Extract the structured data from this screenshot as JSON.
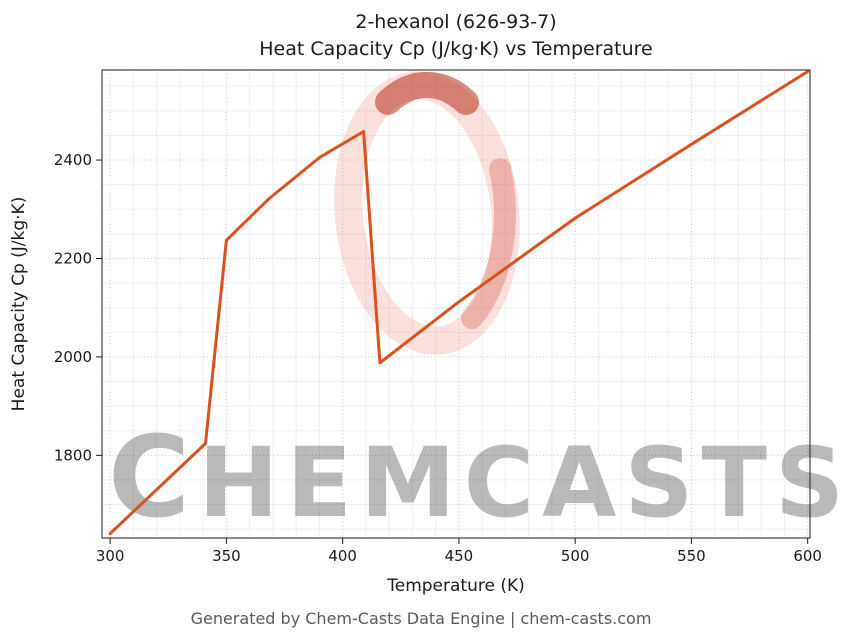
{
  "chart_data": {
    "type": "line",
    "title_line1": "2-hexanol (626-93-7)",
    "title_line2": "Heat Capacity Cp (J/kg·K) vs Temperature",
    "xlabel": "Temperature (K)",
    "ylabel": "Heat Capacity Cp (J/kg·K)",
    "series": [
      {
        "name": "Heat Capacity Cp",
        "x": [
          300,
          341,
          350,
          368,
          390,
          409,
          416,
          450,
          500,
          550,
          600
        ],
        "y": [
          1641,
          1824,
          2237,
          2320,
          2405,
          2458,
          1988,
          2112,
          2282,
          2432,
          2580
        ]
      }
    ],
    "xticks": [
      300,
      350,
      400,
      450,
      500,
      550,
      600
    ],
    "yticks": [
      1800,
      2000,
      2200,
      2400
    ],
    "xlim": [
      296.5,
      601
    ],
    "ylim": [
      1632,
      2583
    ],
    "minor_x_step": 10,
    "minor_y_start": 1650,
    "minor_y_end": 2550,
    "minor_y_step": 50,
    "line_color": "#d9511d",
    "grid": "major+minor",
    "legend": "none"
  },
  "watermark": {
    "first_letter": "C",
    "rest": "HEMCASTS",
    "color": "#e8543a"
  },
  "footer": {
    "text": "Generated by Chem-Casts Data Engine | chem-casts.com"
  }
}
